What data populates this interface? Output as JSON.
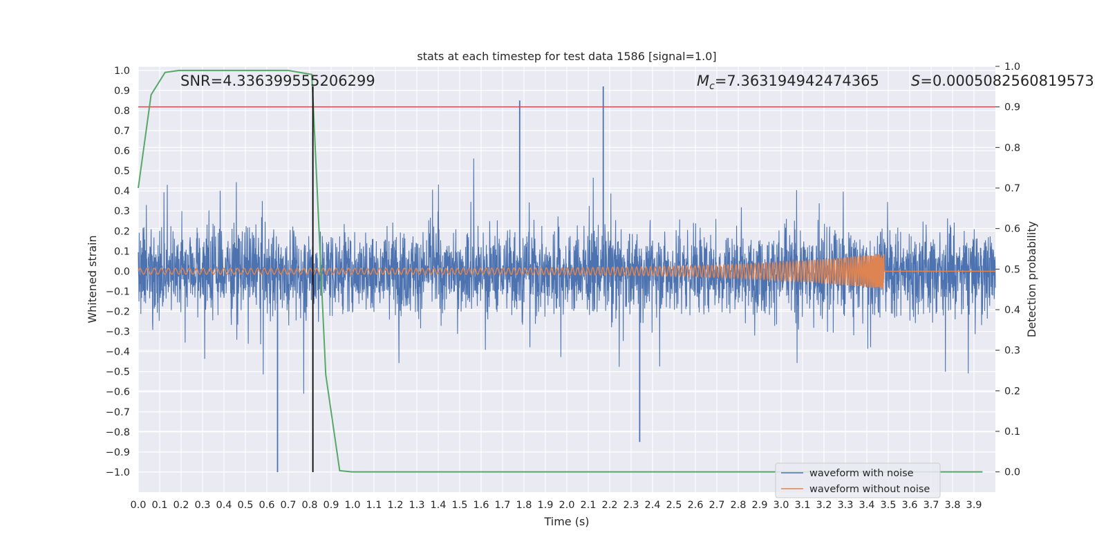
{
  "chart_data": {
    "type": "line",
    "title": "stats at each timestep for test data 1586 [signal=1.0]",
    "xlabel": "Time (s)",
    "ylabel": "Whitened strain",
    "y2label": "Detection probability",
    "xlim": [
      0.0,
      4.0
    ],
    "ylim": [
      -1.1,
      1.02
    ],
    "y2lim": [
      -0.05,
      1.0
    ],
    "xticks": [
      "0.0",
      "0.1",
      "0.2",
      "0.3",
      "0.4",
      "0.5",
      "0.6",
      "0.7",
      "0.8",
      "0.9",
      "1.0",
      "1.1",
      "1.2",
      "1.3",
      "1.4",
      "1.5",
      "1.6",
      "1.7",
      "1.8",
      "1.9",
      "2.0",
      "2.1",
      "2.2",
      "2.3",
      "2.4",
      "2.5",
      "2.6",
      "2.7",
      "2.8",
      "2.9",
      "3.0",
      "3.1",
      "3.2",
      "3.3",
      "3.4",
      "3.5",
      "3.6",
      "3.7",
      "3.8",
      "3.9"
    ],
    "yticks": [
      "1.0",
      "0.9",
      "0.8",
      "0.7",
      "0.6",
      "0.5",
      "0.4",
      "0.3",
      "0.2",
      "0.1",
      "0.0",
      "−0.1",
      "−0.2",
      "−0.3",
      "−0.4",
      "−0.5",
      "−0.6",
      "−0.7",
      "−0.8",
      "−0.9",
      "−1.0"
    ],
    "y2ticks": [
      "1.0",
      "0.9",
      "0.8",
      "0.7",
      "0.6",
      "0.5",
      "0.4",
      "0.3",
      "0.2",
      "0.1",
      "0.0"
    ],
    "annotations": {
      "snr": "SNR=4.336399555206299",
      "mc_symbol": "M",
      "mc_sub": "c",
      "mc_value": "=7.363194942474365",
      "s_symbol": "S",
      "s_value": "=0.0005082560819573"
    },
    "series": [
      {
        "name": "waveform with noise",
        "color": "#4c72b0",
        "kind": "noise",
        "x_start": 0.0,
        "x_end": 4.0,
        "amplitude_typical": 0.35,
        "spikes": [
          {
            "x": 0.65,
            "y": -1.0
          },
          {
            "x": 1.78,
            "y": 0.85
          },
          {
            "x": 2.17,
            "y": 0.92
          },
          {
            "x": 2.34,
            "y": -0.85
          }
        ]
      },
      {
        "name": "waveform without noise",
        "color": "#dd8452",
        "kind": "chirp",
        "x_start": 0.0,
        "x_merger": 3.48,
        "x_end": 4.0,
        "amp_start": 0.015,
        "amp_peak": 0.09
      },
      {
        "name": "detection probability",
        "color": "#55a868",
        "axis": "y2",
        "x": [
          0.0,
          0.06,
          0.125,
          0.19,
          0.25,
          0.32,
          0.5,
          0.7,
          0.81,
          0.875,
          0.94,
          1.0,
          2.0,
          3.0,
          3.94
        ],
        "y": [
          0.7,
          0.93,
          0.985,
          0.99,
          0.99,
          0.99,
          0.99,
          0.99,
          0.98,
          0.24,
          0.003,
          0.0,
          0.0,
          0.0,
          0.0
        ]
      }
    ],
    "threshold": {
      "y2": 0.9,
      "color": "#c44e52"
    },
    "marker_time": {
      "x": 0.815,
      "color": "#000000"
    },
    "legend": {
      "position": "bottom-right",
      "entries": [
        "waveform with noise",
        "waveform without noise"
      ]
    }
  }
}
